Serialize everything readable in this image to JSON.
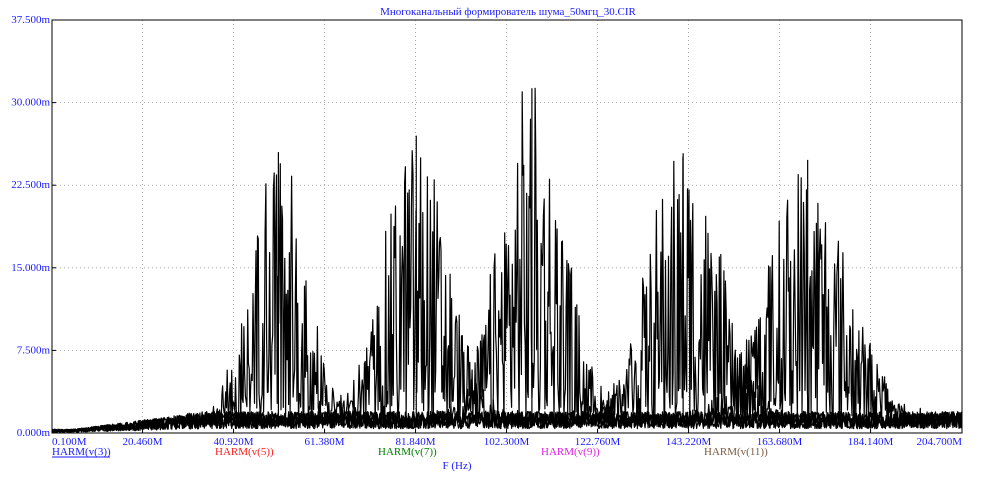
{
  "chart_data": {
    "type": "line",
    "title": "Многоканальный формирователь шума_50мгц_30.CIR",
    "xlabel": "F (Hz)",
    "ylabel": "",
    "xlim": [
      0.1,
      204.7
    ],
    "ylim": [
      0,
      37.5
    ],
    "x_unit": "MHz",
    "y_unit": "m",
    "grid": true,
    "x_ticks": [
      0.1,
      20.46,
      40.92,
      61.38,
      81.84,
      102.3,
      122.76,
      143.22,
      163.68,
      184.14,
      204.7
    ],
    "x_tick_labels": [
      "0.100M",
      "20.460M",
      "40.920M",
      "61.380M",
      "81.840M",
      "102.300M",
      "122.760M",
      "143.220M",
      "163.680M",
      "184.140M",
      "204.700M"
    ],
    "y_ticks": [
      0,
      7.5,
      15,
      22.5,
      30,
      37.5
    ],
    "y_tick_labels": [
      "0.000m",
      "7.500m",
      "15.000m",
      "22.500m",
      "30.000m",
      "37.500m"
    ],
    "legend_position": "bottom",
    "series": [
      {
        "name": "HARM(v(3))",
        "legend_color": "#1a1aff",
        "color": "#000000",
        "center": 51,
        "peak": 25.5,
        "width": 6
      },
      {
        "name": "HARM(v(5))",
        "legend_color": "#ff1a1a",
        "color": "#000000",
        "center": 82,
        "peak": 27.0,
        "width": 7
      },
      {
        "name": "HARM(v(7))",
        "legend_color": "#008000",
        "color": "#000000",
        "center": 108,
        "peak": 31.3,
        "width": 7
      },
      {
        "name": "HARM(v(9))",
        "legend_color": "#e020e0",
        "color": "#000000",
        "center": 142,
        "peak": 25.4,
        "width": 8
      },
      {
        "name": "HARM(v(11))",
        "legend_color": "#7a5a40",
        "color": "#000000",
        "center": 170,
        "peak": 24.8,
        "width": 9
      }
    ]
  }
}
